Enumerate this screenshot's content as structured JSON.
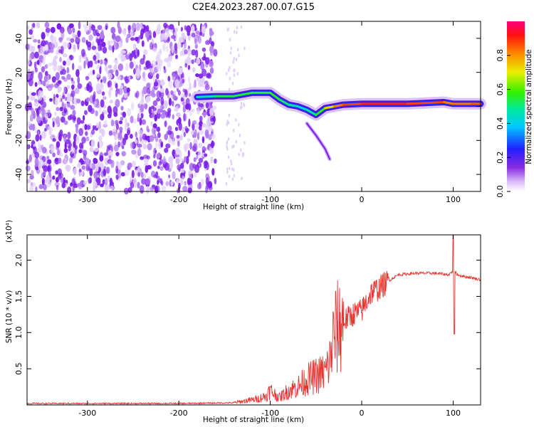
{
  "chart_data": [
    {
      "type": "heatmap",
      "title": "C2E4.2023.287.00.07.G15",
      "xlabel": "Height of straight line (km)",
      "ylabel": "Frequency (Hz)",
      "xlim": [
        -366,
        130
      ],
      "ylim": [
        -50,
        50
      ],
      "xticks": [
        "-300",
        "-200",
        "-100",
        "0",
        "100"
      ],
      "xtick_values": [
        -300,
        -200,
        -100,
        0,
        100
      ],
      "yticks": [
        "-40",
        "-20",
        "0",
        "20",
        "40"
      ],
      "ytick_values": [
        -40,
        -20,
        0,
        20,
        40
      ],
      "colorbar": {
        "label": "Normalized spectral amplitude",
        "range": [
          0,
          1
        ],
        "ticks": [
          "0.0",
          "0.2",
          "0.4",
          "0.6",
          "0.8"
        ],
        "tick_values": [
          0.0,
          0.2,
          0.4,
          0.6,
          0.8
        ],
        "colormap": "rainbow (white-violet-blue-cyan-green-yellow-red-magenta)"
      },
      "noise_region": {
        "x": [
          -366,
          -160
        ],
        "y": [
          -50,
          48
        ],
        "amplitude": [
          0.02,
          0.12
        ]
      },
      "dominant_frequency_track": {
        "x": [
          -180,
          -160,
          -140,
          -120,
          -100,
          -90,
          -80,
          -70,
          -60,
          -50,
          -40,
          -30,
          -20,
          0,
          50,
          90,
          100,
          120,
          130
        ],
        "y": [
          5.5,
          6,
          6,
          8,
          8,
          4,
          1,
          0,
          -2,
          -5,
          -1,
          0,
          1,
          1.5,
          1.5,
          2.5,
          1.5,
          1.5,
          1.5
        ],
        "amplitude": [
          0.4,
          0.5,
          0.55,
          0.55,
          0.6,
          0.55,
          0.5,
          0.45,
          0.45,
          0.5,
          0.65,
          0.8,
          0.85,
          0.9,
          0.9,
          0.85,
          0.8,
          0.85,
          0.85
        ]
      },
      "branch_feature": {
        "x": [
          -60,
          -50,
          -40,
          -35
        ],
        "y": [
          -10,
          -17,
          -25,
          -31
        ]
      }
    },
    {
      "type": "line",
      "title": "",
      "xlabel": "Height of straight line (km)",
      "ylabel": "SNR (10 * v/v)",
      "y_scale_label": "(x10⁴)",
      "xlim": [
        -366,
        130
      ],
      "ylim": [
        0,
        2.35
      ],
      "xticks": [
        "-300",
        "-200",
        "-100",
        "0",
        "100"
      ],
      "xtick_values": [
        -300,
        -200,
        -100,
        0,
        100
      ],
      "yticks": [
        "0.5",
        "1.0",
        "1.5",
        "2.0"
      ],
      "ytick_values": [
        0.5,
        1.0,
        1.5,
        2.0
      ],
      "series": [
        {
          "color": "#e8332f",
          "x": [
            -366,
            -200,
            -140,
            -130,
            -115,
            -105,
            -100,
            -90,
            -80,
            -70,
            -60,
            -50,
            -40,
            -35,
            -30,
            -20,
            -10,
            0,
            10,
            20,
            30,
            40,
            60,
            80,
            95,
            100,
            105,
            110,
            120,
            130
          ],
          "y": [
            0.02,
            0.02,
            0.03,
            0.05,
            0.08,
            0.12,
            0.2,
            0.1,
            0.2,
            0.25,
            0.35,
            0.4,
            0.45,
            0.6,
            1.0,
            1.15,
            1.25,
            1.3,
            1.55,
            1.62,
            1.72,
            1.8,
            1.82,
            1.82,
            1.8,
            1.85,
            1.8,
            1.78,
            1.76,
            1.73
          ]
        }
      ]
    }
  ]
}
